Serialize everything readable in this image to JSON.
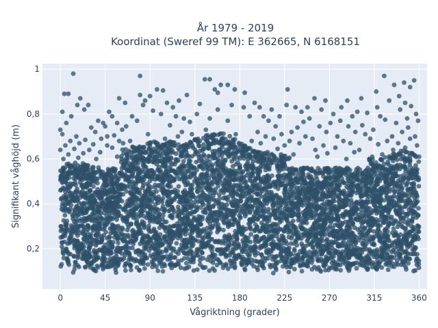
{
  "chart_data": {
    "type": "scatter",
    "title": "År 1979 - 2019",
    "subtitle": "Koordinat (Sweref 99 TM): E 362665, N 6168151",
    "xlabel": "Vågriktning (grader)",
    "ylabel": "Signifikant våghöjd (m)",
    "xlim": [
      -18,
      368
    ],
    "ylim": [
      0.02,
      1.025
    ],
    "x_ticks": [
      0,
      45,
      90,
      135,
      180,
      225,
      270,
      315,
      360
    ],
    "x_tick_labels": [
      "0",
      "45",
      "90",
      "135",
      "180",
      "225",
      "270",
      "315",
      "360"
    ],
    "y_ticks": [
      0.2,
      0.4,
      0.6,
      0.8,
      1
    ],
    "y_tick_labels": [
      "0,2",
      "0,4",
      "0,6",
      "0,8",
      "1"
    ],
    "grid": true,
    "marker_color": "#2e5068",
    "background_color": "#e5ecf6",
    "series": [
      {
        "points": [
          [
            13,
            0.98
          ],
          [
            80,
            0.97
          ],
          [
            145,
            0.955
          ],
          [
            150,
            0.955
          ],
          [
            325,
            0.97
          ],
          [
            355,
            0.95
          ],
          [
            335,
            0.93
          ],
          [
            103,
            0.905
          ],
          [
            97,
            0.91
          ],
          [
            155,
            0.91
          ],
          [
            161,
            0.93
          ],
          [
            168,
            0.93
          ],
          [
            175,
            0.91
          ],
          [
            228,
            0.91
          ],
          [
            345,
            0.94
          ],
          [
            351,
            0.92
          ],
          [
            4,
            0.89
          ],
          [
            8,
            0.89
          ],
          [
            80,
            0.885
          ],
          [
            90,
            0.88
          ],
          [
            127,
            0.885
          ],
          [
            158,
            0.895
          ],
          [
            185,
            0.895
          ],
          [
            317,
            0.9
          ],
          [
            340,
            0.88
          ],
          [
            20,
            0.87
          ],
          [
            59,
            0.87
          ],
          [
            85,
            0.86
          ],
          [
            107,
            0.85
          ],
          [
            119,
            0.86
          ],
          [
            195,
            0.85
          ],
          [
            255,
            0.87
          ],
          [
            266,
            0.86
          ],
          [
            288,
            0.86
          ],
          [
            302,
            0.87
          ],
          [
            330,
            0.86
          ],
          [
            346,
            0.85
          ],
          [
            17,
            0.84
          ],
          [
            28,
            0.84
          ],
          [
            65,
            0.85
          ],
          [
            83,
            0.84
          ],
          [
            113,
            0.83
          ],
          [
            140,
            0.845
          ],
          [
            172,
            0.84
          ],
          [
            184,
            0.83
          ],
          [
            200,
            0.83
          ],
          [
            227,
            0.84
          ],
          [
            248,
            0.83
          ],
          [
            236,
            0.83
          ],
          [
            262,
            0.82
          ],
          [
            282,
            0.83
          ],
          [
            318,
            0.83
          ],
          [
            341,
            0.82
          ],
          [
            352,
            0.835
          ],
          [
            2,
            0.81
          ],
          [
            24,
            0.82
          ],
          [
            49,
            0.81
          ],
          [
            93,
            0.815
          ],
          [
            158,
            0.82
          ],
          [
            212,
            0.82
          ],
          [
            242,
            0.81
          ],
          [
            274,
            0.8
          ],
          [
            298,
            0.81
          ],
          [
            308,
            0.805
          ],
          [
            357,
            0.8
          ],
          [
            11,
            0.79
          ],
          [
            52,
            0.79
          ],
          [
            72,
            0.79
          ],
          [
            101,
            0.8
          ],
          [
            116,
            0.79
          ],
          [
            124,
            0.78
          ],
          [
            137,
            0.8
          ],
          [
            150,
            0.78
          ],
          [
            190,
            0.79
          ],
          [
            204,
            0.79
          ],
          [
            220,
            0.79
          ],
          [
            250,
            0.78
          ],
          [
            293,
            0.79
          ],
          [
            321,
            0.79
          ],
          [
            348,
            0.78
          ],
          [
            6,
            0.76
          ],
          [
            38,
            0.77
          ],
          [
            43,
            0.76
          ],
          [
            57,
            0.76
          ],
          [
            77,
            0.77
          ],
          [
            130,
            0.765
          ],
          [
            168,
            0.77
          ],
          [
            209,
            0.77
          ],
          [
            244,
            0.765
          ],
          [
            271,
            0.76
          ],
          [
            281,
            0.77
          ],
          [
            326,
            0.775
          ],
          [
            337,
            0.76
          ],
          [
            359,
            0.77
          ],
          [
            31,
            0.74
          ],
          [
            45,
            0.745
          ],
          [
            66,
            0.745
          ],
          [
            110,
            0.75
          ],
          [
            216,
            0.745
          ],
          [
            238,
            0.74
          ],
          [
            260,
            0.745
          ],
          [
            289,
            0.745
          ],
          [
            303,
            0.75
          ],
          [
            314,
            0.73
          ],
          [
            349,
            0.74
          ],
          [
            0,
            0.73
          ],
          [
            35,
            0.72
          ],
          [
            62,
            0.73
          ],
          [
            122,
            0.72
          ],
          [
            146,
            0.73
          ],
          [
            198,
            0.72
          ],
          [
            232,
            0.72
          ],
          [
            267,
            0.72
          ],
          [
            296,
            0.72
          ],
          [
            343,
            0.72
          ],
          [
            2,
            0.71
          ],
          [
            16,
            0.7
          ],
          [
            47,
            0.7
          ],
          [
            54,
            0.705
          ],
          [
            88,
            0.71
          ],
          [
            118,
            0.7
          ],
          [
            132,
            0.71
          ],
          [
            176,
            0.71
          ],
          [
            206,
            0.7
          ],
          [
            222,
            0.71
          ],
          [
            246,
            0.7
          ],
          [
            278,
            0.7
          ],
          [
            306,
            0.71
          ],
          [
            333,
            0.7
          ],
          [
            356,
            0.7
          ],
          [
            10,
            0.68
          ],
          [
            25,
            0.685
          ],
          [
            41,
            0.69
          ],
          [
            59,
            0.68
          ],
          [
            70,
            0.68
          ],
          [
            105,
            0.69
          ],
          [
            140,
            0.68
          ],
          [
            162,
            0.69
          ],
          [
            192,
            0.68
          ],
          [
            214,
            0.69
          ],
          [
            230,
            0.68
          ],
          [
            253,
            0.69
          ],
          [
            284,
            0.68
          ],
          [
            311,
            0.69
          ],
          [
            328,
            0.68
          ],
          [
            351,
            0.69
          ],
          [
            5,
            0.66
          ],
          [
            19,
            0.67
          ],
          [
            33,
            0.665
          ],
          [
            47,
            0.66
          ],
          [
            63,
            0.67
          ],
          [
            96,
            0.67
          ],
          [
            127,
            0.66
          ],
          [
            155,
            0.67
          ],
          [
            180,
            0.665
          ],
          [
            201,
            0.67
          ],
          [
            225,
            0.66
          ],
          [
            240,
            0.67
          ],
          [
            264,
            0.66
          ],
          [
            291,
            0.67
          ],
          [
            319,
            0.665
          ],
          [
            339,
            0.67
          ],
          [
            358,
            0.66
          ],
          [
            0,
            0.64
          ],
          [
            14,
            0.645
          ],
          [
            29,
            0.64
          ],
          [
            52,
            0.65
          ],
          [
            74,
            0.65
          ],
          [
            112,
            0.64
          ],
          [
            149,
            0.65
          ],
          [
            187,
            0.64
          ],
          [
            218,
            0.645
          ],
          [
            256,
            0.64
          ],
          [
            276,
            0.65
          ],
          [
            300,
            0.64
          ],
          [
            334,
            0.64
          ],
          [
            346,
            0.65
          ],
          [
            8,
            0.62
          ],
          [
            23,
            0.625
          ],
          [
            40,
            0.63
          ],
          [
            67,
            0.62
          ],
          [
            100,
            0.625
          ],
          [
            136,
            0.63
          ],
          [
            171,
            0.62
          ],
          [
            208,
            0.63
          ],
          [
            234,
            0.62
          ],
          [
            268,
            0.625
          ],
          [
            295,
            0.63
          ],
          [
            323,
            0.62
          ],
          [
            353,
            0.625
          ],
          [
            3,
            0.6
          ],
          [
            18,
            0.605
          ],
          [
            36,
            0.6
          ],
          [
            57,
            0.61
          ],
          [
            84,
            0.6
          ],
          [
            121,
            0.61
          ],
          [
            158,
            0.6
          ],
          [
            196,
            0.61
          ],
          [
            229,
            0.6
          ],
          [
            258,
            0.61
          ],
          [
            287,
            0.6
          ],
          [
            313,
            0.61
          ],
          [
            342,
            0.6
          ],
          [
            360,
            0.61
          ]
        ]
      }
    ]
  }
}
